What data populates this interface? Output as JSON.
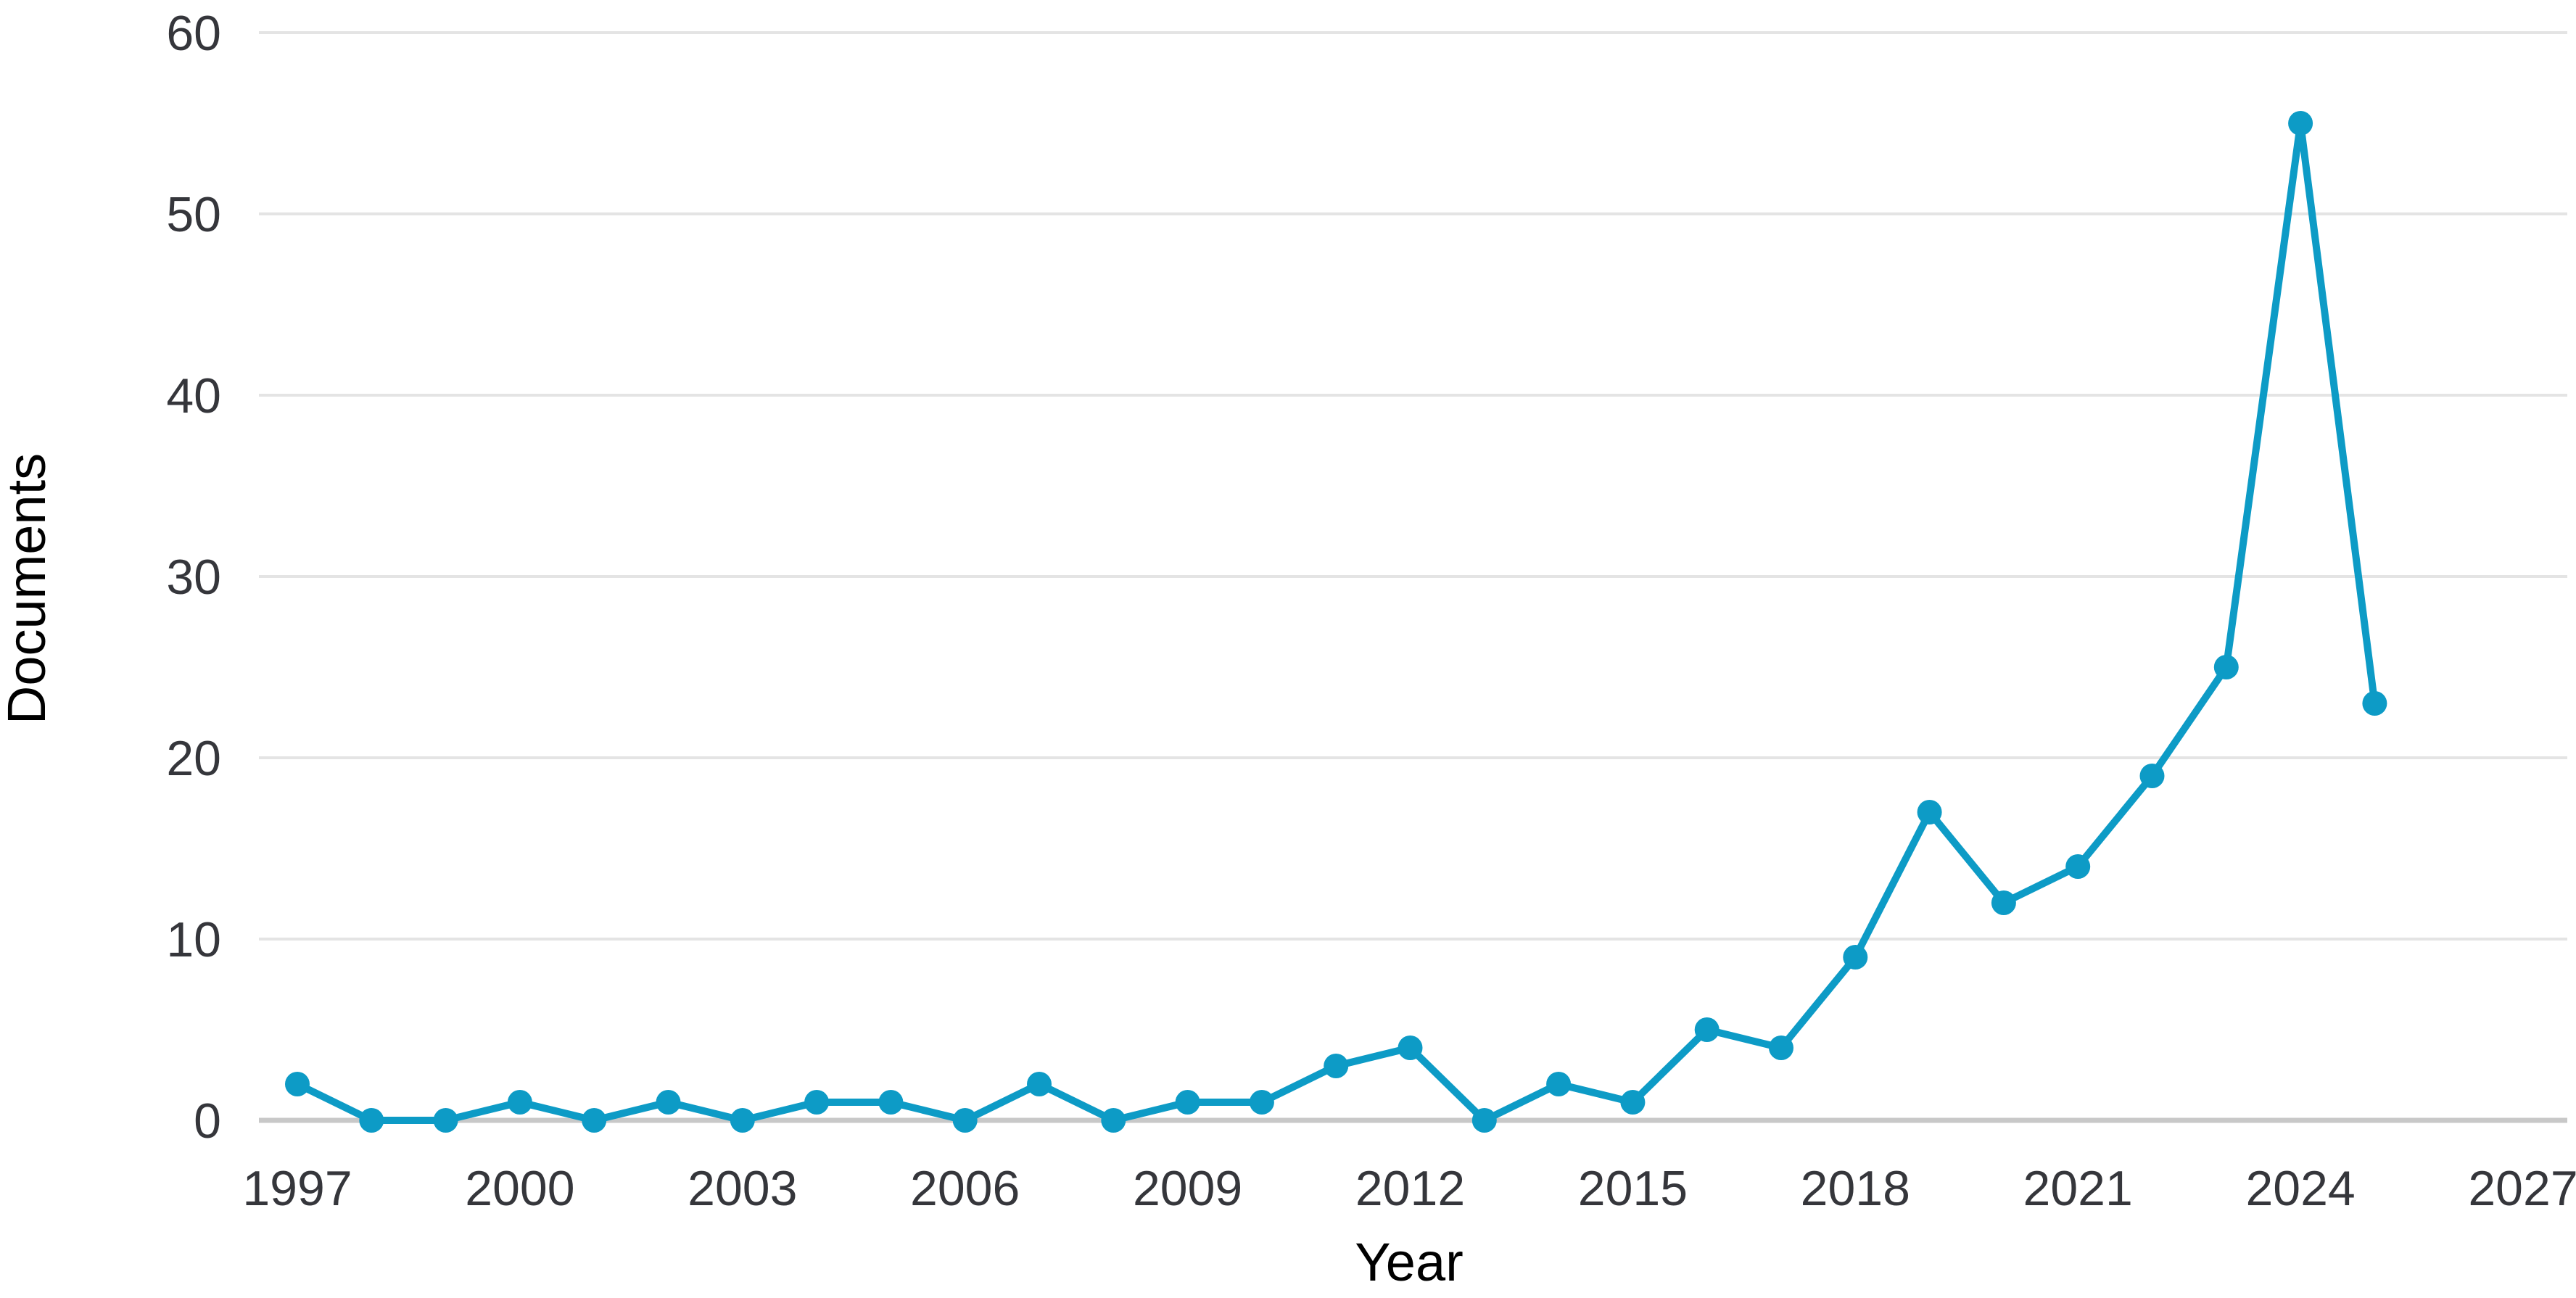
{
  "chart_data": {
    "type": "line",
    "series_name": "Documents",
    "x": [
      1997,
      1998,
      1999,
      2000,
      2001,
      2002,
      2003,
      2004,
      2005,
      2006,
      2007,
      2008,
      2009,
      2010,
      2011,
      2012,
      2013,
      2014,
      2015,
      2016,
      2017,
      2018,
      2019,
      2020,
      2021,
      2022,
      2023,
      2024,
      2025
    ],
    "values": [
      2,
      0,
      0,
      1,
      0,
      1,
      0,
      1,
      1,
      0,
      2,
      0,
      1,
      1,
      3,
      4,
      0,
      2,
      1,
      5,
      4,
      9,
      17,
      12,
      14,
      19,
      25,
      55,
      23
    ],
    "xlabel": "Year",
    "ylabel": "Documents",
    "ylim": [
      0,
      60
    ],
    "xlim": [
      1996.5,
      2027.6
    ],
    "yticks": [
      0,
      10,
      20,
      30,
      40,
      50,
      60
    ],
    "xticks": [
      1997,
      2000,
      2003,
      2006,
      2009,
      2012,
      2015,
      2018,
      2021,
      2024,
      2027
    ],
    "grid": "horizontal-only",
    "legend_position": "none",
    "marker": "circle",
    "colors": {
      "line": "#0d9bc6",
      "marker": "#0d9bc6",
      "gridline": "#e4e4e4",
      "baseline": "#c8c8c8",
      "text": "#35363b"
    }
  }
}
